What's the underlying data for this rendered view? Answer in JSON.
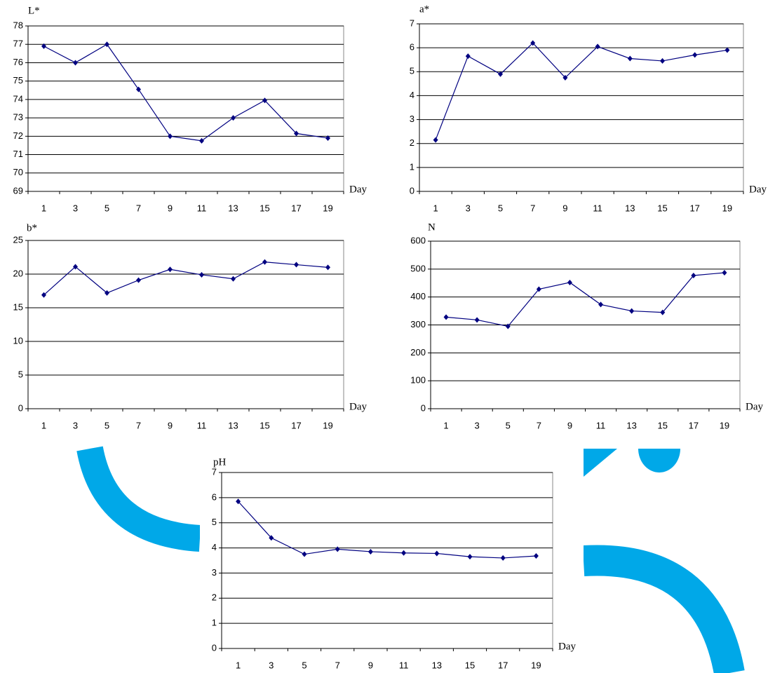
{
  "chart_data": [
    {
      "type": "line",
      "title": "L*",
      "x_label": "Day",
      "categories": [
        "1",
        "3",
        "5",
        "7",
        "9",
        "11",
        "13",
        "15",
        "17",
        "19"
      ],
      "values": [
        76.9,
        76.0,
        77.0,
        74.55,
        72.0,
        71.75,
        73.0,
        73.95,
        72.15,
        71.9
      ],
      "color": "#000080",
      "ylim": [
        69,
        78
      ],
      "yticks": [
        69,
        70,
        71,
        72,
        73,
        74,
        75,
        76,
        77,
        78
      ],
      "grid": true
    },
    {
      "type": "line",
      "title": "a*",
      "x_label": "Day",
      "categories": [
        "1",
        "3",
        "5",
        "7",
        "9",
        "11",
        "13",
        "15",
        "17",
        "19"
      ],
      "values": [
        2.15,
        5.65,
        4.9,
        6.2,
        4.75,
        6.05,
        5.55,
        5.45,
        5.7,
        5.9
      ],
      "color": "#000080",
      "ylim": [
        0,
        7
      ],
      "yticks": [
        0,
        1,
        2,
        3,
        4,
        5,
        6,
        7
      ],
      "grid": true
    },
    {
      "type": "line",
      "title": "b*",
      "x_label": "Day",
      "categories": [
        "1",
        "3",
        "5",
        "7",
        "9",
        "11",
        "13",
        "15",
        "17",
        "19"
      ],
      "values": [
        16.9,
        21.1,
        17.2,
        19.1,
        20.7,
        19.9,
        19.3,
        21.8,
        21.4,
        21.0
      ],
      "color": "#000080",
      "ylim": [
        0,
        25
      ],
      "yticks": [
        0,
        5,
        10,
        15,
        20,
        25
      ],
      "grid": true
    },
    {
      "type": "line",
      "title": "N",
      "x_label": "Day",
      "categories": [
        "1",
        "3",
        "5",
        "7",
        "9",
        "11",
        "13",
        "15",
        "17",
        "19"
      ],
      "values": [
        328,
        318,
        295,
        428,
        452,
        373,
        350,
        345,
        477,
        487
      ],
      "color": "#000080",
      "ylim": [
        0,
        600
      ],
      "yticks": [
        0,
        100,
        200,
        300,
        400,
        500,
        600
      ],
      "grid": true
    },
    {
      "type": "line",
      "title": "pH",
      "x_label": "Day",
      "categories": [
        "1",
        "3",
        "5",
        "7",
        "9",
        "11",
        "13",
        "15",
        "17",
        "19"
      ],
      "values": [
        5.85,
        4.4,
        3.75,
        3.95,
        3.85,
        3.8,
        3.78,
        3.65,
        3.6,
        3.68
      ],
      "color": "#000080",
      "ylim": [
        0,
        7
      ],
      "yticks": [
        0,
        1,
        2,
        3,
        4,
        5,
        6,
        7
      ],
      "grid": true
    }
  ]
}
